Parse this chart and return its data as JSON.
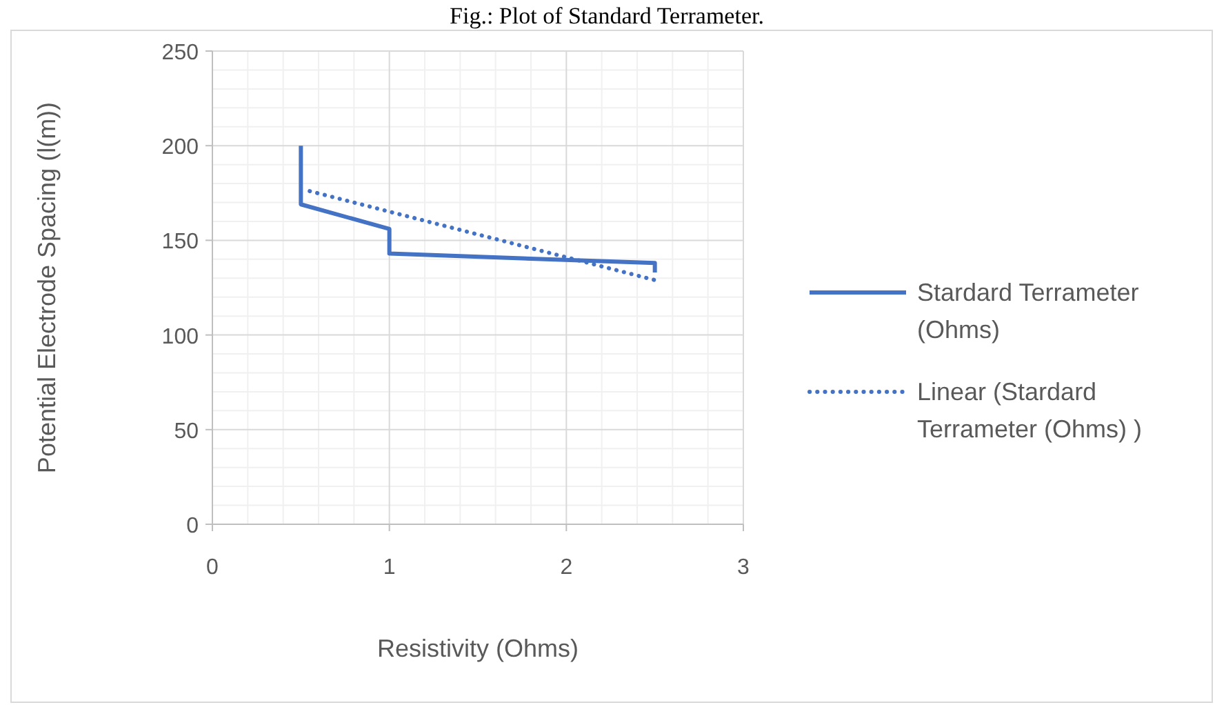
{
  "chart_data": {
    "type": "line",
    "title": "Fig.: Plot of Standard Terrameter.",
    "xlabel": "Resistivity (Ohms)",
    "ylabel": "Potential Electrode Spacing (l(m))",
    "series": [
      {
        "name": "Stardard Terrameter (Ohms)",
        "color": "#4472c4",
        "x": [
          0.5,
          0.5,
          1,
          1,
          2.5,
          2.5
        ],
        "values": [
          200,
          169,
          156,
          143,
          138,
          133
        ],
        "line_style": "solid"
      },
      {
        "name": "Linear (Stardard Terrameter (Ohms) )",
        "color": "#4472c4",
        "x": [
          0.55,
          2.5
        ],
        "values": [
          176,
          129
        ],
        "line_style": "dotted"
      }
    ],
    "xlim": [
      0,
      3
    ],
    "xticks": [
      0,
      1,
      2,
      3
    ],
    "ylim": [
      0,
      250
    ],
    "yticks": [
      0,
      50,
      100,
      150,
      200,
      250
    ],
    "grid": true,
    "legend": "right"
  }
}
